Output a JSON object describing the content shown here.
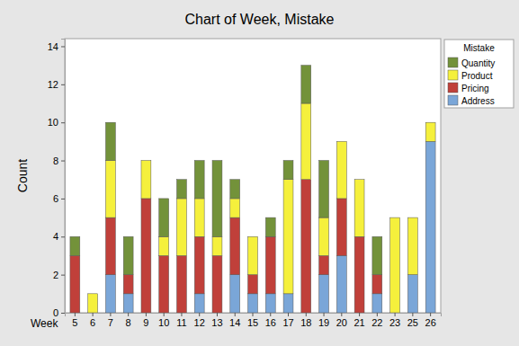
{
  "chart_data": {
    "type": "bar",
    "stacked": true,
    "title": "Chart of Week, Mistake",
    "xlabel": "Week",
    "ylabel": "Count",
    "legend_title": "Mistake",
    "legend": "right",
    "grid": false,
    "categories": [
      "5",
      "6",
      "7",
      "8",
      "9",
      "10",
      "11",
      "12",
      "13",
      "14",
      "15",
      "16",
      "17",
      "18",
      "19",
      "20",
      "21",
      "22",
      "23",
      "25",
      "26"
    ],
    "series": [
      {
        "name": "Address",
        "color": "#7aa6d8",
        "values": [
          0,
          0,
          2,
          1,
          0,
          0,
          0,
          1,
          0,
          2,
          1,
          1,
          1,
          0,
          2,
          3,
          0,
          1,
          0,
          2,
          9
        ]
      },
      {
        "name": "Pricing",
        "color": "#c0403a",
        "values": [
          3,
          0,
          3,
          1,
          6,
          3,
          3,
          3,
          3,
          3,
          1,
          3,
          0,
          7,
          1,
          3,
          4,
          1,
          0,
          0,
          0
        ]
      },
      {
        "name": "Product",
        "color": "#f5f03c",
        "values": [
          0,
          1,
          3,
          0,
          2,
          1,
          3,
          2,
          1,
          1,
          2,
          0,
          6,
          4,
          2,
          3,
          3,
          0,
          5,
          3,
          1
        ]
      },
      {
        "name": "Quantity",
        "color": "#73923a",
        "values": [
          1,
          0,
          2,
          2,
          0,
          2,
          1,
          2,
          4,
          1,
          0,
          1,
          1,
          2,
          3,
          0,
          0,
          2,
          0,
          0,
          0
        ]
      }
    ],
    "ylim": [
      0,
      14.4
    ],
    "yticks": [
      0,
      2,
      4,
      6,
      8,
      10,
      12,
      14
    ]
  }
}
